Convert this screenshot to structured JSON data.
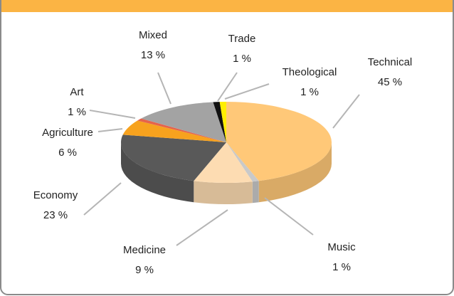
{
  "chart_data": {
    "type": "pie",
    "categories": [
      "Technical",
      "Music",
      "Medicine",
      "Economy",
      "Agriculture",
      "Art",
      "Mixed",
      "Trade",
      "Theological"
    ],
    "values": [
      45,
      1,
      9,
      23,
      6,
      1,
      13,
      1,
      1
    ],
    "value_labels": [
      "45 %",
      "1 %",
      "9 %",
      "23 %",
      "6 %",
      "1 %",
      "13 %",
      "1 %",
      "1 %"
    ],
    "colors": [
      "#ffc878",
      "#c9c9c9",
      "#fddcb2",
      "#595959",
      "#f7a21e",
      "#e5634b",
      "#a3a3a3",
      "#111111",
      "#ffee00"
    ]
  }
}
